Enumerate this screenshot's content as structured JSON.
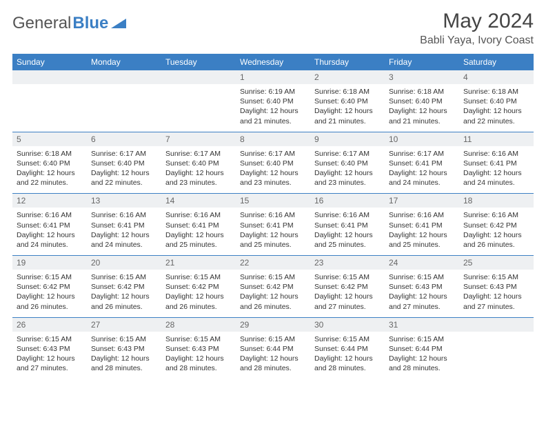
{
  "logo": {
    "word1": "General",
    "word2": "Blue"
  },
  "title": "May 2024",
  "location": "Babli Yaya, Ivory Coast",
  "colors": {
    "header_bg": "#3b7fc4",
    "header_fg": "#ffffff",
    "daynum_bg": "#eef0f2",
    "text": "#333333",
    "rule": "#3b7fc4"
  },
  "dow": [
    "Sunday",
    "Monday",
    "Tuesday",
    "Wednesday",
    "Thursday",
    "Friday",
    "Saturday"
  ],
  "weeks": [
    [
      null,
      null,
      null,
      {
        "n": "1",
        "sr": "Sunrise: 6:19 AM",
        "ss": "Sunset: 6:40 PM",
        "d1": "Daylight: 12 hours",
        "d2": "and 21 minutes."
      },
      {
        "n": "2",
        "sr": "Sunrise: 6:18 AM",
        "ss": "Sunset: 6:40 PM",
        "d1": "Daylight: 12 hours",
        "d2": "and 21 minutes."
      },
      {
        "n": "3",
        "sr": "Sunrise: 6:18 AM",
        "ss": "Sunset: 6:40 PM",
        "d1": "Daylight: 12 hours",
        "d2": "and 21 minutes."
      },
      {
        "n": "4",
        "sr": "Sunrise: 6:18 AM",
        "ss": "Sunset: 6:40 PM",
        "d1": "Daylight: 12 hours",
        "d2": "and 22 minutes."
      }
    ],
    [
      {
        "n": "5",
        "sr": "Sunrise: 6:18 AM",
        "ss": "Sunset: 6:40 PM",
        "d1": "Daylight: 12 hours",
        "d2": "and 22 minutes."
      },
      {
        "n": "6",
        "sr": "Sunrise: 6:17 AM",
        "ss": "Sunset: 6:40 PM",
        "d1": "Daylight: 12 hours",
        "d2": "and 22 minutes."
      },
      {
        "n": "7",
        "sr": "Sunrise: 6:17 AM",
        "ss": "Sunset: 6:40 PM",
        "d1": "Daylight: 12 hours",
        "d2": "and 23 minutes."
      },
      {
        "n": "8",
        "sr": "Sunrise: 6:17 AM",
        "ss": "Sunset: 6:40 PM",
        "d1": "Daylight: 12 hours",
        "d2": "and 23 minutes."
      },
      {
        "n": "9",
        "sr": "Sunrise: 6:17 AM",
        "ss": "Sunset: 6:40 PM",
        "d1": "Daylight: 12 hours",
        "d2": "and 23 minutes."
      },
      {
        "n": "10",
        "sr": "Sunrise: 6:17 AM",
        "ss": "Sunset: 6:41 PM",
        "d1": "Daylight: 12 hours",
        "d2": "and 24 minutes."
      },
      {
        "n": "11",
        "sr": "Sunrise: 6:16 AM",
        "ss": "Sunset: 6:41 PM",
        "d1": "Daylight: 12 hours",
        "d2": "and 24 minutes."
      }
    ],
    [
      {
        "n": "12",
        "sr": "Sunrise: 6:16 AM",
        "ss": "Sunset: 6:41 PM",
        "d1": "Daylight: 12 hours",
        "d2": "and 24 minutes."
      },
      {
        "n": "13",
        "sr": "Sunrise: 6:16 AM",
        "ss": "Sunset: 6:41 PM",
        "d1": "Daylight: 12 hours",
        "d2": "and 24 minutes."
      },
      {
        "n": "14",
        "sr": "Sunrise: 6:16 AM",
        "ss": "Sunset: 6:41 PM",
        "d1": "Daylight: 12 hours",
        "d2": "and 25 minutes."
      },
      {
        "n": "15",
        "sr": "Sunrise: 6:16 AM",
        "ss": "Sunset: 6:41 PM",
        "d1": "Daylight: 12 hours",
        "d2": "and 25 minutes."
      },
      {
        "n": "16",
        "sr": "Sunrise: 6:16 AM",
        "ss": "Sunset: 6:41 PM",
        "d1": "Daylight: 12 hours",
        "d2": "and 25 minutes."
      },
      {
        "n": "17",
        "sr": "Sunrise: 6:16 AM",
        "ss": "Sunset: 6:41 PM",
        "d1": "Daylight: 12 hours",
        "d2": "and 25 minutes."
      },
      {
        "n": "18",
        "sr": "Sunrise: 6:16 AM",
        "ss": "Sunset: 6:42 PM",
        "d1": "Daylight: 12 hours",
        "d2": "and 26 minutes."
      }
    ],
    [
      {
        "n": "19",
        "sr": "Sunrise: 6:15 AM",
        "ss": "Sunset: 6:42 PM",
        "d1": "Daylight: 12 hours",
        "d2": "and 26 minutes."
      },
      {
        "n": "20",
        "sr": "Sunrise: 6:15 AM",
        "ss": "Sunset: 6:42 PM",
        "d1": "Daylight: 12 hours",
        "d2": "and 26 minutes."
      },
      {
        "n": "21",
        "sr": "Sunrise: 6:15 AM",
        "ss": "Sunset: 6:42 PM",
        "d1": "Daylight: 12 hours",
        "d2": "and 26 minutes."
      },
      {
        "n": "22",
        "sr": "Sunrise: 6:15 AM",
        "ss": "Sunset: 6:42 PM",
        "d1": "Daylight: 12 hours",
        "d2": "and 26 minutes."
      },
      {
        "n": "23",
        "sr": "Sunrise: 6:15 AM",
        "ss": "Sunset: 6:42 PM",
        "d1": "Daylight: 12 hours",
        "d2": "and 27 minutes."
      },
      {
        "n": "24",
        "sr": "Sunrise: 6:15 AM",
        "ss": "Sunset: 6:43 PM",
        "d1": "Daylight: 12 hours",
        "d2": "and 27 minutes."
      },
      {
        "n": "25",
        "sr": "Sunrise: 6:15 AM",
        "ss": "Sunset: 6:43 PM",
        "d1": "Daylight: 12 hours",
        "d2": "and 27 minutes."
      }
    ],
    [
      {
        "n": "26",
        "sr": "Sunrise: 6:15 AM",
        "ss": "Sunset: 6:43 PM",
        "d1": "Daylight: 12 hours",
        "d2": "and 27 minutes."
      },
      {
        "n": "27",
        "sr": "Sunrise: 6:15 AM",
        "ss": "Sunset: 6:43 PM",
        "d1": "Daylight: 12 hours",
        "d2": "and 28 minutes."
      },
      {
        "n": "28",
        "sr": "Sunrise: 6:15 AM",
        "ss": "Sunset: 6:43 PM",
        "d1": "Daylight: 12 hours",
        "d2": "and 28 minutes."
      },
      {
        "n": "29",
        "sr": "Sunrise: 6:15 AM",
        "ss": "Sunset: 6:44 PM",
        "d1": "Daylight: 12 hours",
        "d2": "and 28 minutes."
      },
      {
        "n": "30",
        "sr": "Sunrise: 6:15 AM",
        "ss": "Sunset: 6:44 PM",
        "d1": "Daylight: 12 hours",
        "d2": "and 28 minutes."
      },
      {
        "n": "31",
        "sr": "Sunrise: 6:15 AM",
        "ss": "Sunset: 6:44 PM",
        "d1": "Daylight: 12 hours",
        "d2": "and 28 minutes."
      },
      null
    ]
  ]
}
